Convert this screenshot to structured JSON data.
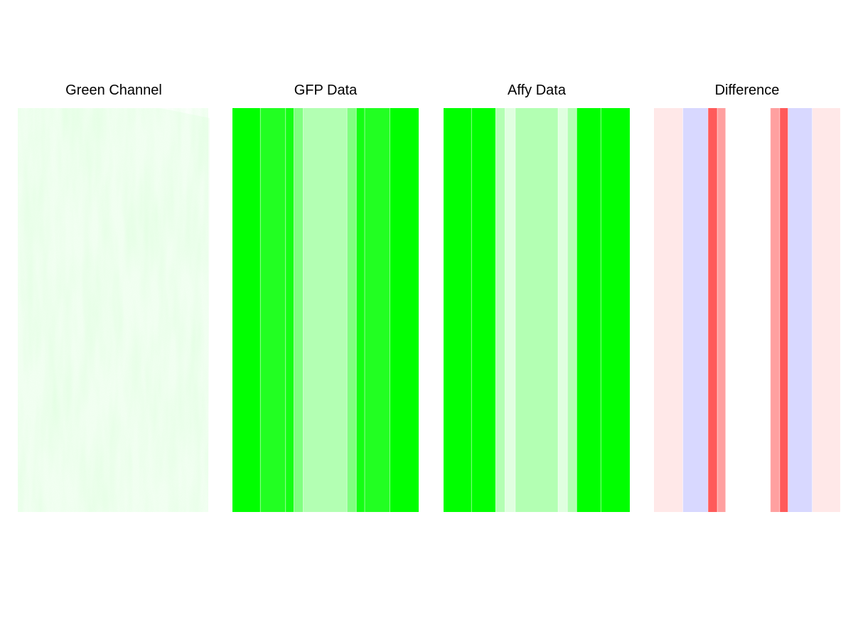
{
  "panels": [
    {
      "title": "Green Channel"
    },
    {
      "title": "GFP Data"
    },
    {
      "title": "Affy Data"
    },
    {
      "title": "Difference"
    }
  ],
  "colors": {
    "green_bright": "#00ff00",
    "green_mid": "#22ff22",
    "green_light": "#b3ffb3",
    "green_pale": "#e0ffe0",
    "green_soft": "#80ff80",
    "blue_pale": "#d8d8ff",
    "red_pale": "#ffe8e8",
    "red_light": "#ffa0a0",
    "red_mid": "#ff5a5a"
  },
  "chart_data": [
    {
      "type": "heatmap",
      "title": "Green Channel",
      "description_values": "microscopy image, green channel intensity",
      "texture": "image"
    },
    {
      "type": "heatmap",
      "title": "GFP Data",
      "bands": [
        {
          "width": 0.15,
          "color": "#00ff00"
        },
        {
          "width": 0.135,
          "color": "#22ff22"
        },
        {
          "width": 0.045,
          "color": "#14ff14"
        },
        {
          "width": 0.05,
          "color": "#80ff80"
        },
        {
          "width": 0.235,
          "color": "#b3ffb3"
        },
        {
          "width": 0.05,
          "color": "#80ff80"
        },
        {
          "width": 0.045,
          "color": "#14ff14"
        },
        {
          "width": 0.135,
          "color": "#22ff22"
        },
        {
          "width": 0.155,
          "color": "#00ff00"
        }
      ]
    },
    {
      "type": "heatmap",
      "title": "Affy Data",
      "bands": [
        {
          "width": 0.15,
          "color": "#00ff00"
        },
        {
          "width": 0.13,
          "color": "#00ff00"
        },
        {
          "width": 0.05,
          "color": "#b3ffb3"
        },
        {
          "width": 0.055,
          "color": "#e0ffe0"
        },
        {
          "width": 0.23,
          "color": "#b3ffb3"
        },
        {
          "width": 0.05,
          "color": "#e0ffe0"
        },
        {
          "width": 0.05,
          "color": "#b3ffb3"
        },
        {
          "width": 0.13,
          "color": "#00ff00"
        },
        {
          "width": 0.155,
          "color": "#00ff00"
        }
      ]
    },
    {
      "type": "heatmap",
      "title": "Difference",
      "bands": [
        {
          "width": 0.155,
          "color": "#ffe8e8"
        },
        {
          "width": 0.135,
          "color": "#d8d8ff"
        },
        {
          "width": 0.05,
          "color": "#ff5a5a"
        },
        {
          "width": 0.045,
          "color": "#ffa0a0"
        },
        {
          "width": 0.24,
          "color": "#ffffff"
        },
        {
          "width": 0.05,
          "color": "#ffa0a0"
        },
        {
          "width": 0.045,
          "color": "#ff5a5a"
        },
        {
          "width": 0.13,
          "color": "#d8d8ff"
        },
        {
          "width": 0.15,
          "color": "#ffe8e8"
        }
      ]
    }
  ]
}
